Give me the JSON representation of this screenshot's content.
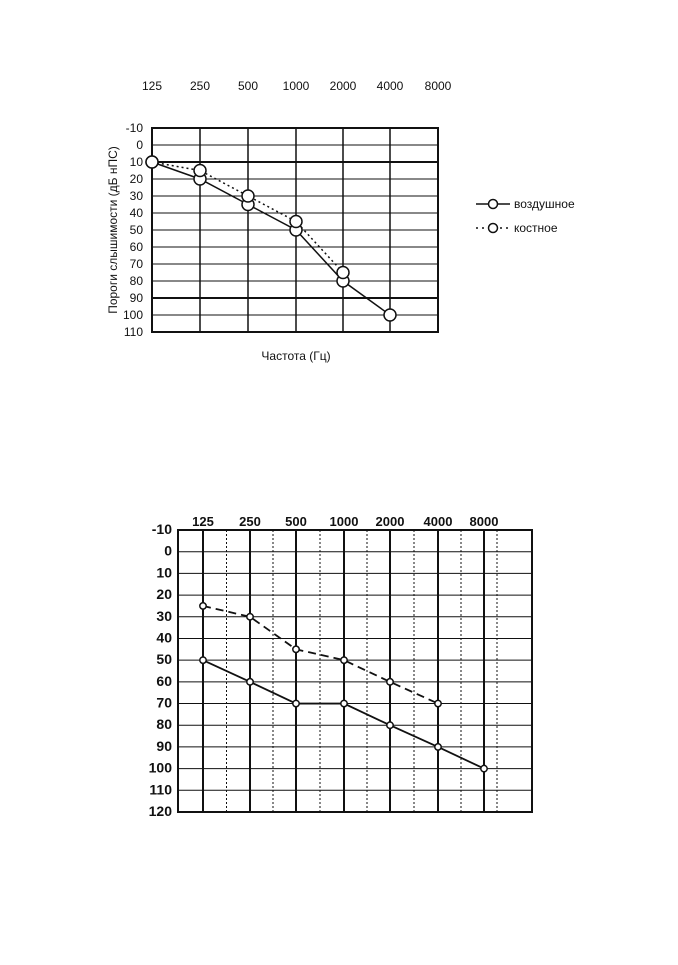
{
  "chart_data": [
    {
      "type": "line",
      "title": "",
      "x_tick_labels": [
        "125",
        "250",
        "500",
        "1000",
        "2000",
        "4000",
        "8000"
      ],
      "y_tick_labels": [
        "-10",
        "0",
        "10",
        "20",
        "30",
        "40",
        "50",
        "60",
        "70",
        "80",
        "90",
        "100",
        "110"
      ],
      "ylim": [
        -10,
        110
      ],
      "y_inverted": true,
      "xlabel": "Частота (Гц)",
      "ylabel": "Пороги слышимости (дБ нПС)",
      "grid": true,
      "legend_position": "right",
      "series": [
        {
          "name": "воздушное",
          "line": "solid",
          "marker": "open-circle",
          "x": [
            "125",
            "250",
            "500",
            "1000",
            "2000",
            "4000"
          ],
          "values": [
            10,
            20,
            35,
            50,
            80,
            100
          ]
        },
        {
          "name": "костное",
          "line": "dotted",
          "marker": "open-circle",
          "x": [
            "125",
            "250",
            "500",
            "1000",
            "2000"
          ],
          "values": [
            10,
            15,
            30,
            45,
            75
          ]
        }
      ],
      "colors": {
        "line": "#111111",
        "grid": "#111111",
        "marker_fill": "#ffffff"
      }
    },
    {
      "type": "line",
      "title": "",
      "x_tick_labels": [
        "125",
        "250",
        "500",
        "1000",
        "2000",
        "4000",
        "8000"
      ],
      "y_tick_labels": [
        "-10",
        "0",
        "10",
        "20",
        "30",
        "40",
        "50",
        "60",
        "70",
        "80",
        "90",
        "100",
        "110",
        "120"
      ],
      "ylim": [
        -10,
        120
      ],
      "y_inverted": true,
      "grid": true,
      "series": [
        {
          "line": "solid",
          "marker": "small-open-circle",
          "x": [
            "125",
            "250",
            "500",
            "1000",
            "2000",
            "4000",
            "8000"
          ],
          "values": [
            50,
            60,
            70,
            70,
            80,
            90,
            100
          ]
        },
        {
          "line": "dashed",
          "marker": "small-open-circle",
          "x": [
            "125",
            "250",
            "500",
            "1000",
            "2000",
            "4000"
          ],
          "values": [
            25,
            30,
            45,
            50,
            60,
            70
          ]
        }
      ],
      "colors": {
        "line": "#111111",
        "grid": "#111111",
        "marker_fill": "#ffffff"
      }
    }
  ]
}
